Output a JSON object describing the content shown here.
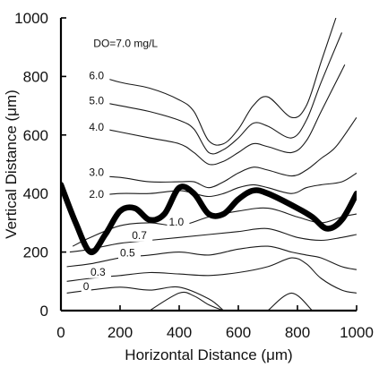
{
  "chart_data": {
    "type": "line",
    "title": "",
    "xlabel": "Horizontal Distance (μm)",
    "ylabel": "Vertical Distance (μm)",
    "xlim": [
      0,
      1000
    ],
    "ylim": [
      0,
      1000
    ],
    "x_ticks": [
      "0",
      "200",
      "400",
      "600",
      "800",
      "1000"
    ],
    "y_ticks": [
      "0",
      "200",
      "400",
      "600",
      "800",
      "1000"
    ],
    "grid": false,
    "legend": "none",
    "annotation": "DO=7.0 mg/L",
    "colors": {
      "contour": "#1a1a1a",
      "boundary": "#000000"
    },
    "contours": [
      {
        "label": "6.0",
        "label_at": [
          95,
          790
        ],
        "points": [
          [
            100,
            810
          ],
          [
            200,
            780
          ],
          [
            300,
            760
          ],
          [
            400,
            720
          ],
          [
            450,
            680
          ],
          [
            500,
            580
          ],
          [
            550,
            570
          ],
          [
            600,
            620
          ],
          [
            650,
            700
          ],
          [
            700,
            730
          ],
          [
            780,
            660
          ],
          [
            830,
            700
          ],
          [
            880,
            850
          ],
          [
            930,
            1000
          ]
        ]
      },
      {
        "label": "5.0",
        "label_at": [
          95,
          705
        ],
        "points": [
          [
            100,
            720
          ],
          [
            200,
            700
          ],
          [
            300,
            680
          ],
          [
            400,
            650
          ],
          [
            450,
            620
          ],
          [
            500,
            540
          ],
          [
            550,
            550
          ],
          [
            600,
            590
          ],
          [
            650,
            640
          ],
          [
            700,
            630
          ],
          [
            780,
            590
          ],
          [
            830,
            650
          ],
          [
            880,
            780
          ],
          [
            950,
            950
          ]
        ]
      },
      {
        "label": "4.0",
        "label_at": [
          95,
          615
        ],
        "points": [
          [
            100,
            630
          ],
          [
            200,
            610
          ],
          [
            300,
            590
          ],
          [
            400,
            570
          ],
          [
            450,
            540
          ],
          [
            500,
            500
          ],
          [
            550,
            510
          ],
          [
            600,
            540
          ],
          [
            650,
            570
          ],
          [
            700,
            560
          ],
          [
            780,
            540
          ],
          [
            830,
            580
          ],
          [
            880,
            680
          ],
          [
            960,
            840
          ]
        ]
      },
      {
        "label": "3.0",
        "label_at": [
          95,
          460
        ],
        "points": [
          [
            100,
            460
          ],
          [
            200,
            455
          ],
          [
            300,
            440
          ],
          [
            400,
            440
          ],
          [
            450,
            440
          ],
          [
            500,
            420
          ],
          [
            550,
            440
          ],
          [
            600,
            470
          ],
          [
            650,
            490
          ],
          [
            700,
            480
          ],
          [
            780,
            460
          ],
          [
            830,
            480
          ],
          [
            880,
            520
          ],
          [
            930,
            560
          ],
          [
            1000,
            660
          ]
        ]
      },
      {
        "label": "2.0",
        "label_at": [
          95,
          385
        ],
        "points": [
          [
            100,
            390
          ],
          [
            200,
            400
          ],
          [
            300,
            400
          ],
          [
            400,
            410
          ],
          [
            450,
            400
          ],
          [
            500,
            390
          ],
          [
            550,
            400
          ],
          [
            600,
            420
          ],
          [
            650,
            430
          ],
          [
            700,
            420
          ],
          [
            780,
            400
          ],
          [
            830,
            420
          ],
          [
            880,
            430
          ],
          [
            950,
            440
          ],
          [
            1000,
            470
          ]
        ]
      },
      {
        "label": "1.0",
        "label_at": [
          365,
          290
        ],
        "points": [
          [
            40,
            220
          ],
          [
            100,
            250
          ],
          [
            200,
            290
          ],
          [
            300,
            300
          ],
          [
            400,
            290
          ],
          [
            500,
            320
          ],
          [
            600,
            340
          ],
          [
            700,
            350
          ],
          [
            800,
            320
          ],
          [
            880,
            300
          ],
          [
            950,
            320
          ],
          [
            1000,
            330
          ]
        ]
      },
      {
        "label": "0.7",
        "label_at": [
          240,
          245
        ],
        "points": [
          [
            30,
            200
          ],
          [
            100,
            210
          ],
          [
            200,
            230
          ],
          [
            300,
            240
          ],
          [
            400,
            250
          ],
          [
            500,
            260
          ],
          [
            600,
            270
          ],
          [
            700,
            280
          ],
          [
            800,
            250
          ],
          [
            880,
            240
          ],
          [
            950,
            250
          ],
          [
            1000,
            260
          ]
        ]
      },
      {
        "label": "0.5",
        "label_at": [
          200,
          185
        ],
        "points": [
          [
            20,
            150
          ],
          [
            100,
            160
          ],
          [
            200,
            180
          ],
          [
            300,
            190
          ],
          [
            400,
            200
          ],
          [
            500,
            190
          ],
          [
            600,
            210
          ],
          [
            700,
            220
          ],
          [
            780,
            200
          ],
          [
            830,
            190
          ],
          [
            880,
            180
          ],
          [
            950,
            150
          ],
          [
            1000,
            140
          ]
        ]
      },
      {
        "label": "0.3",
        "label_at": [
          100,
          120
        ],
        "points": [
          [
            20,
            100
          ],
          [
            100,
            110
          ],
          [
            200,
            120
          ],
          [
            300,
            130
          ],
          [
            400,
            125
          ],
          [
            500,
            120
          ],
          [
            600,
            130
          ],
          [
            700,
            150
          ],
          [
            780,
            180
          ],
          [
            830,
            160
          ],
          [
            880,
            110
          ],
          [
            950,
            70
          ],
          [
            1000,
            60
          ]
        ]
      },
      {
        "label": "0",
        "label_at": [
          75,
          70
        ],
        "points": [
          [
            20,
            60
          ],
          [
            100,
            70
          ],
          [
            200,
            80
          ],
          [
            300,
            70
          ],
          [
            400,
            80
          ],
          [
            500,
            40
          ],
          [
            550,
            0
          ]
        ]
      },
      {
        "label": "",
        "label_at": null,
        "points": [
          [
            300,
            0
          ],
          [
            400,
            60
          ],
          [
            450,
            50
          ],
          [
            500,
            20
          ],
          [
            550,
            0
          ]
        ]
      },
      {
        "label": "",
        "label_at": null,
        "points": [
          [
            700,
            0
          ],
          [
            780,
            60
          ],
          [
            850,
            0
          ]
        ]
      }
    ],
    "boundary": {
      "points": [
        [
          0,
          430
        ],
        [
          50,
          300
        ],
        [
          100,
          200
        ],
        [
          150,
          260
        ],
        [
          200,
          340
        ],
        [
          250,
          350
        ],
        [
          300,
          310
        ],
        [
          350,
          330
        ],
        [
          400,
          420
        ],
        [
          450,
          400
        ],
        [
          500,
          330
        ],
        [
          550,
          330
        ],
        [
          600,
          380
        ],
        [
          650,
          410
        ],
        [
          700,
          400
        ],
        [
          800,
          350
        ],
        [
          850,
          320
        ],
        [
          900,
          280
        ],
        [
          950,
          310
        ],
        [
          1000,
          400
        ]
      ]
    }
  }
}
